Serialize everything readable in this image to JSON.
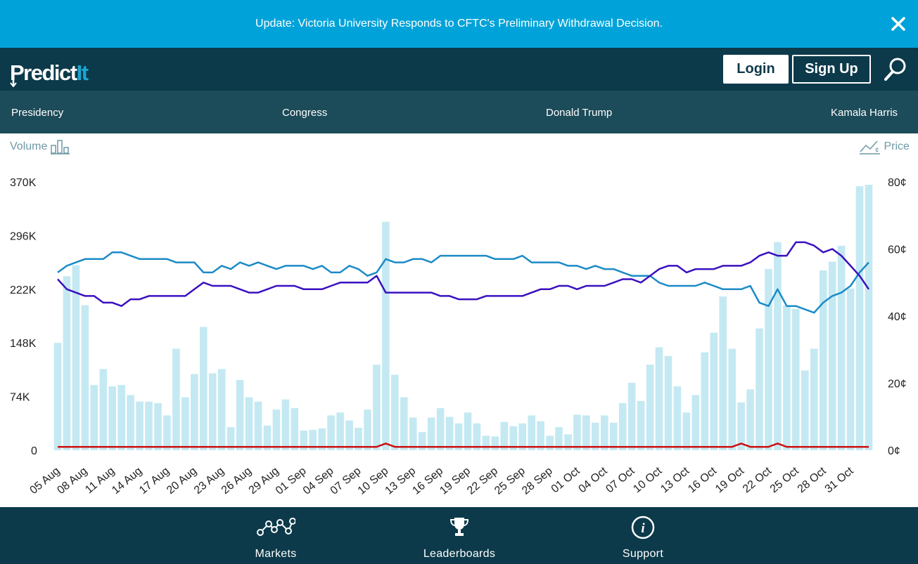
{
  "banner": {
    "text": "Update: Victoria University Responds to CFTC's Preliminary Withdrawal Decision.",
    "close_icon": "close-icon"
  },
  "header": {
    "logo_main": "Predict",
    "logo_accent": "It",
    "login_label": "Login",
    "signup_label": "Sign Up",
    "search_icon": "search-icon"
  },
  "nav": {
    "items": [
      {
        "label": "Presidency"
      },
      {
        "label": "Congress"
      },
      {
        "label": "Donald Trump"
      },
      {
        "label": "Kamala Harris"
      }
    ]
  },
  "toggles": {
    "volume_label": "Volume",
    "price_label": "Price"
  },
  "chart_data": {
    "type": "bar",
    "left_axis": {
      "ticks": [
        "370K",
        "296K",
        "222K",
        "148K",
        "74K",
        "0"
      ],
      "range": [
        0,
        370000
      ]
    },
    "right_axis": {
      "ticks": [
        "80¢",
        "60¢",
        "40¢",
        "20¢",
        "0¢"
      ],
      "range": [
        0,
        80
      ]
    },
    "x_tick_labels": [
      "05 Aug",
      "08 Aug",
      "11 Aug",
      "14 Aug",
      "17 Aug",
      "20 Aug",
      "23 Aug",
      "26 Aug",
      "29 Aug",
      "01 Sep",
      "04 Sep",
      "07 Sep",
      "10 Sep",
      "13 Sep",
      "16 Sep",
      "19 Sep",
      "22 Sep",
      "25 Sep",
      "28 Sep",
      "01 Oct",
      "04 Oct",
      "07 Oct",
      "10 Oct",
      "13 Oct",
      "16 Oct",
      "19 Oct",
      "22 Oct",
      "25 Oct",
      "28 Oct",
      "31 Oct"
    ],
    "volume_values": [
      148000,
      240000,
      255000,
      200000,
      90000,
      112000,
      88000,
      90000,
      76000,
      67000,
      67000,
      65000,
      48000,
      140000,
      73000,
      105000,
      170000,
      106000,
      112000,
      32000,
      97000,
      73000,
      67000,
      34000,
      56000,
      70000,
      58000,
      27000,
      28000,
      30000,
      48000,
      52000,
      41000,
      31000,
      56000,
      118000,
      315000,
      104000,
      73000,
      45000,
      25000,
      45000,
      58000,
      46000,
      37000,
      52000,
      37000,
      20000,
      19000,
      39000,
      33000,
      37000,
      48000,
      40000,
      20000,
      32000,
      22000,
      49000,
      48000,
      38000,
      48000,
      38000,
      65000,
      93000,
      68000,
      118000,
      142000,
      130000,
      88000,
      52000,
      76000,
      135000,
      162000,
      212000,
      140000,
      66000,
      84000,
      168000,
      250000,
      287000,
      200000,
      195000,
      110000,
      140000,
      248000,
      260000,
      282000,
      223000,
      364000,
      366000
    ],
    "series": [
      {
        "name": "",
        "color": "#1b8bc7",
        "values": [
          53,
          55,
          56,
          57,
          57,
          57,
          59,
          59,
          58,
          57,
          57,
          57,
          57,
          56,
          56,
          56,
          53,
          53,
          55,
          54,
          56,
          55,
          56,
          55,
          54,
          55,
          55,
          55,
          54,
          55,
          53,
          53,
          55,
          54,
          52,
          53,
          57,
          56,
          56,
          57,
          57,
          56,
          58,
          58,
          58,
          58,
          58,
          58,
          57,
          57,
          57,
          58,
          56,
          56,
          56,
          56,
          55,
          55,
          54,
          55,
          54,
          54,
          53,
          52,
          52,
          52,
          50,
          49,
          49,
          49,
          49,
          50,
          49,
          48,
          48,
          48,
          49,
          44,
          43,
          48,
          43,
          43,
          42,
          41,
          44,
          46,
          47,
          49,
          53,
          56
        ]
      },
      {
        "name": "",
        "color": "#3a10c0",
        "values": [
          51,
          48,
          47,
          46,
          46,
          44,
          44,
          43,
          45,
          45,
          46,
          46,
          46,
          46,
          46,
          48,
          50,
          49,
          49,
          49,
          48,
          47,
          47,
          48,
          49,
          49,
          49,
          48,
          48,
          48,
          49,
          50,
          50,
          50,
          50,
          52,
          47,
          47,
          47,
          47,
          47,
          47,
          46,
          46,
          45,
          45,
          45,
          46,
          46,
          46,
          46,
          46,
          47,
          48,
          48,
          49,
          49,
          48,
          49,
          49,
          49,
          50,
          51,
          51,
          50,
          52,
          54,
          55,
          55,
          53,
          54,
          54,
          54,
          55,
          55,
          55,
          56,
          58,
          59,
          58,
          58,
          62,
          62,
          61,
          59,
          60,
          58,
          55,
          52,
          48
        ]
      },
      {
        "name": "",
        "color": "#cc1111",
        "values": [
          1,
          1,
          1,
          1,
          1,
          1,
          1,
          1,
          1,
          1,
          1,
          1,
          1,
          1,
          1,
          1,
          1,
          1,
          1,
          1,
          1,
          1,
          1,
          1,
          1,
          1,
          1,
          1,
          1,
          1,
          1,
          1,
          1,
          1,
          1,
          1,
          2,
          1,
          1,
          1,
          1,
          1,
          1,
          1,
          1,
          1,
          1,
          1,
          1,
          1,
          1,
          1,
          1,
          1,
          1,
          1,
          1,
          1,
          1,
          1,
          1,
          1,
          1,
          1,
          1,
          1,
          1,
          1,
          1,
          1,
          1,
          1,
          1,
          1,
          1,
          2,
          1,
          1,
          1,
          2,
          1,
          1,
          1,
          1,
          1,
          1,
          1,
          1,
          1,
          1
        ]
      }
    ],
    "bar_color": "#c4e9f2",
    "grid": false
  },
  "footer": {
    "items": [
      {
        "label": "Markets",
        "icon": "markets-icon"
      },
      {
        "label": "Leaderboards",
        "icon": "trophy-icon"
      },
      {
        "label": "Support",
        "icon": "info-icon"
      }
    ]
  }
}
